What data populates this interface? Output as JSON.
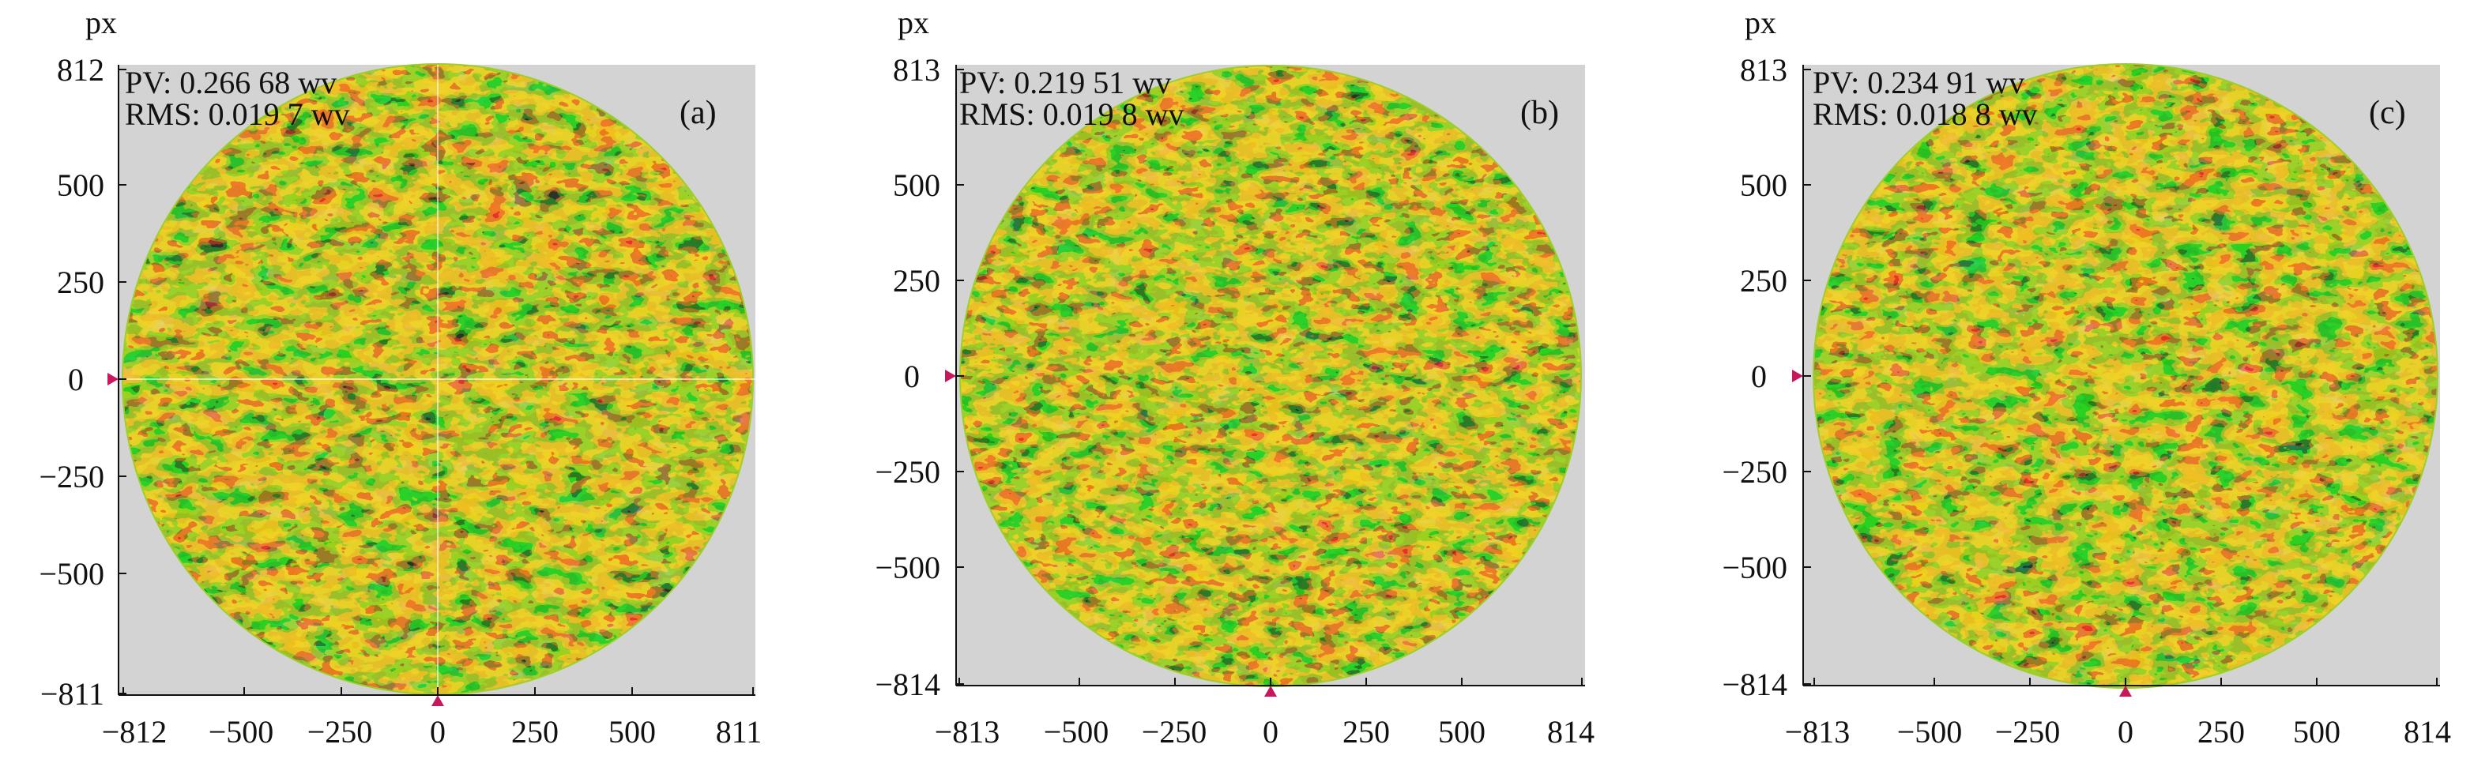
{
  "unit_label": "px",
  "colors": {
    "plot_background": "#d3d3d3",
    "map_palette": [
      "#1c3360",
      "#2c7a3e",
      "#9bd02a",
      "#e6c02a",
      "#f07a1e",
      "#e8321a"
    ],
    "marker": "#c8175a"
  },
  "panels": [
    {
      "tag": "(a)",
      "pv_text": "PV: 0.266 68 wv",
      "rms_text": "RMS: 0.019 7 wv",
      "y_ticks": [
        "812",
        "500",
        "250",
        "0",
        "−250",
        "−500",
        "−811"
      ],
      "x_ticks": [
        "−812",
        "−500",
        "−250",
        "0",
        "250",
        "500",
        "811"
      ]
    },
    {
      "tag": "(b)",
      "pv_text": "PV: 0.219 51 wv",
      "rms_text": "RMS: 0.019 8 wv",
      "y_ticks": [
        "813",
        "500",
        "250",
        "0",
        "−250",
        "−500",
        "−814"
      ],
      "x_ticks": [
        "−813",
        "−500",
        "−250",
        "0",
        "250",
        "500",
        "814"
      ]
    },
    {
      "tag": "(c)",
      "pv_text": "PV: 0.234 91 wv",
      "rms_text": "RMS: 0.018 8 wv",
      "y_ticks": [
        "813",
        "500",
        "250",
        "0",
        "−250",
        "−500",
        "−814"
      ],
      "x_ticks": [
        "−813",
        "−500",
        "−250",
        "0",
        "250",
        "500",
        "814"
      ]
    }
  ]
}
